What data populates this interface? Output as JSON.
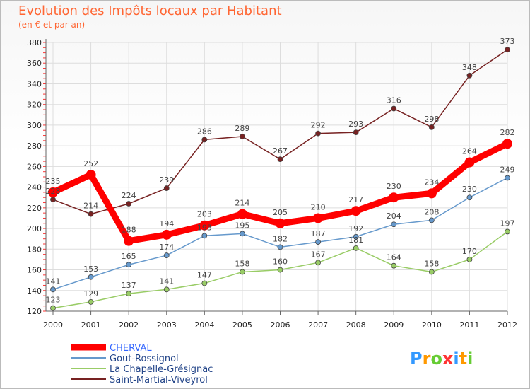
{
  "chart_data": {
    "type": "line",
    "title": "Evolution des Impôts locaux par Habitant",
    "subtitle": "(en € et par an)",
    "xlabel": "",
    "ylabel": "",
    "x": [
      "2000",
      "2001",
      "2002",
      "2003",
      "2004",
      "2005",
      "2006",
      "2007",
      "2008",
      "2009",
      "2010",
      "2011",
      "2012"
    ],
    "ylim": [
      120,
      380
    ],
    "yticks": [
      120,
      140,
      160,
      180,
      200,
      220,
      240,
      260,
      280,
      300,
      320,
      340,
      360,
      380
    ],
    "series": [
      {
        "name": "CHERVAL",
        "color": "#ff0000",
        "emphasis": true,
        "values": [
          235,
          252,
          188,
          194,
          203,
          214,
          205,
          210,
          217,
          230,
          234,
          264,
          282
        ]
      },
      {
        "name": "Gout-Rossignol",
        "color": "#6699cc",
        "values": [
          141,
          153,
          165,
          174,
          193,
          195,
          182,
          187,
          192,
          204,
          208,
          230,
          249
        ]
      },
      {
        "name": "La Chapelle-Grésignac",
        "color": "#99cc66",
        "values": [
          123,
          129,
          137,
          141,
          147,
          158,
          160,
          167,
          181,
          164,
          158,
          170,
          197
        ]
      },
      {
        "name": "Saint-Martial-Viveyrol",
        "color": "#772222",
        "values": [
          228,
          214,
          224,
          239,
          286,
          289,
          267,
          292,
          293,
          316,
          298,
          348,
          373
        ]
      }
    ],
    "legend_position": "bottom-left"
  },
  "logo": {
    "letters": [
      "P",
      "r",
      "o",
      "x",
      "i",
      "t",
      "i"
    ],
    "colors": [
      "#3399ff",
      "#ff9900",
      "#66cc33",
      "#ff3333",
      "#3399ff",
      "#ff9900",
      "#66cc33"
    ]
  }
}
